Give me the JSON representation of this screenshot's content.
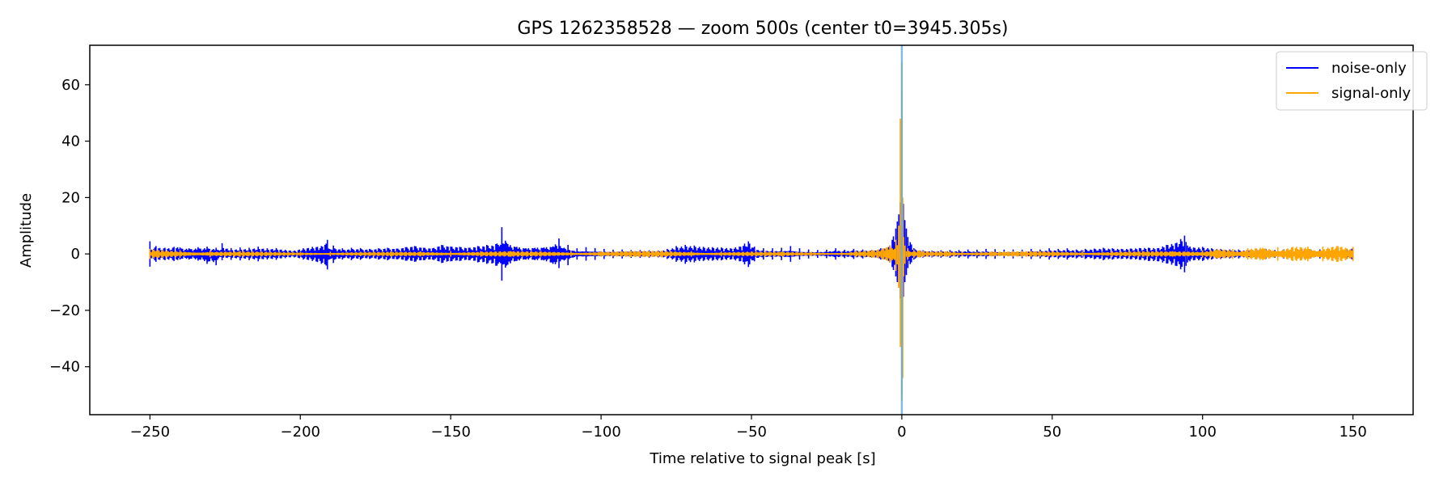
{
  "chart_data": {
    "type": "line",
    "title": "GPS 1262358528 — zoom 500s (center t0=3945.305s)",
    "xlabel": "Time relative to signal peak [s]",
    "ylabel": "Amplitude",
    "xlim": [
      -270,
      170
    ],
    "ylim": [
      -57,
      74
    ],
    "xticks": [
      -250,
      -200,
      -150,
      -100,
      -50,
      0,
      50,
      100,
      150
    ],
    "xtick_labels": [
      "−250",
      "−200",
      "−150",
      "−100",
      "−50",
      "0",
      "50",
      "100",
      "150"
    ],
    "yticks": [
      -40,
      -20,
      0,
      20,
      40,
      60
    ],
    "ytick_labels": [
      "−40",
      "−20",
      "0",
      "20",
      "40",
      "60"
    ],
    "grid": false,
    "legend_position": "top-right",
    "reference_line": {
      "x": 0,
      "color": "#6baed6"
    },
    "series": [
      {
        "name": "noise-only",
        "color": "#0000ff",
        "x": [
          -250,
          -248,
          -245,
          -242,
          -240,
          -237,
          -234,
          -231,
          -228,
          -226,
          -223,
          -220,
          -217,
          -214,
          -211,
          -208,
          -205,
          -202,
          -199,
          -196,
          -193,
          -191,
          -189,
          -186,
          -183,
          -180,
          -177,
          -174,
          -171,
          -168,
          -165,
          -162,
          -159,
          -156,
          -153,
          -150,
          -147,
          -144,
          -141,
          -138,
          -135,
          -133,
          -131,
          -128,
          -125,
          -122,
          -119,
          -116,
          -114,
          -111,
          -108,
          -105,
          -102,
          -99,
          -96,
          -93,
          -90,
          -87,
          -84,
          -81,
          -78,
          -75,
          -72,
          -69,
          -66,
          -63,
          -60,
          -57,
          -54,
          -51,
          -49,
          -46,
          -43,
          -40,
          -37,
          -34,
          -31,
          -28,
          -25,
          -22,
          -19,
          -16,
          -13,
          -10,
          -7,
          -4,
          -2,
          -1,
          0,
          1,
          2,
          4,
          7,
          10,
          13,
          16,
          19,
          22,
          25,
          28,
          31,
          34,
          37,
          40,
          43,
          46,
          49,
          52,
          55,
          58,
          61,
          64,
          67,
          70,
          73,
          76,
          79,
          82,
          85,
          88,
          91,
          94,
          95,
          97,
          100,
          103,
          106,
          109,
          112,
          115,
          118,
          121,
          124,
          127,
          130,
          133,
          136,
          139,
          142,
          145,
          148,
          150
        ],
        "upper": [
          4.5,
          2.8,
          2.2,
          2.5,
          2.3,
          2.0,
          2.4,
          2.6,
          2.2,
          3.8,
          2.1,
          2.3,
          2.2,
          2.6,
          2.0,
          2.1,
          1.5,
          1.2,
          2.0,
          2.5,
          2.8,
          5.0,
          3.0,
          2.0,
          2.2,
          2.1,
          1.8,
          2.0,
          2.2,
          1.9,
          2.4,
          2.8,
          2.2,
          2.0,
          3.2,
          2.6,
          2.5,
          2.2,
          2.8,
          3.2,
          3.5,
          9.5,
          3.5,
          2.5,
          2.0,
          2.2,
          2.3,
          2.7,
          5.5,
          3.2,
          2.0,
          2.4,
          2.1,
          1.8,
          1.5,
          1.6,
          1.4,
          1.4,
          1.3,
          1.2,
          1.8,
          2.8,
          3.2,
          3.0,
          2.5,
          2.4,
          2.3,
          2.0,
          2.6,
          4.5,
          2.6,
          2.0,
          2.0,
          2.2,
          2.8,
          2.0,
          1.6,
          1.4,
          1.5,
          2.0,
          1.5,
          1.8,
          1.6,
          1.4,
          2.0,
          3.0,
          9.0,
          14.0,
          58.0,
          12.0,
          6.0,
          2.0,
          1.3,
          1.2,
          1.3,
          1.4,
          1.4,
          1.6,
          1.5,
          1.8,
          1.7,
          1.5,
          1.6,
          1.5,
          1.8,
          1.6,
          2.0,
          1.8,
          2.0,
          1.6,
          1.8,
          1.9,
          2.2,
          2.0,
          1.8,
          1.9,
          2.1,
          2.2,
          2.0,
          3.2,
          3.8,
          6.5,
          3.0,
          2.3,
          2.5,
          2.0,
          1.8,
          1.6,
          1.6,
          1.5,
          1.6,
          1.8,
          1.4,
          1.6,
          1.5,
          1.7,
          1.5,
          1.6,
          1.8,
          1.8,
          1.7,
          2.0
        ],
        "lower": [
          -4.5,
          -2.8,
          -2.2,
          -2.5,
          -2.0,
          -2.0,
          -2.4,
          -3.5,
          -4.0,
          -2.2,
          -2.1,
          -2.3,
          -2.2,
          -2.6,
          -2.0,
          -2.1,
          -1.5,
          -1.2,
          -2.0,
          -2.5,
          -3.5,
          -5.5,
          -3.2,
          -2.0,
          -2.2,
          -2.1,
          -1.8,
          -2.0,
          -2.2,
          -1.9,
          -2.4,
          -2.8,
          -2.2,
          -2.0,
          -3.2,
          -2.6,
          -2.5,
          -2.2,
          -3.0,
          -3.5,
          -4.2,
          -9.5,
          -3.8,
          -2.5,
          -2.0,
          -2.2,
          -2.3,
          -3.5,
          -5.0,
          -4.0,
          -2.0,
          -2.4,
          -2.1,
          -1.8,
          -1.5,
          -1.6,
          -1.4,
          -1.4,
          -1.3,
          -1.2,
          -1.8,
          -2.8,
          -3.5,
          -3.0,
          -2.5,
          -2.4,
          -2.3,
          -2.0,
          -2.6,
          -4.6,
          -2.6,
          -2.0,
          -2.0,
          -2.2,
          -2.8,
          -2.0,
          -1.6,
          -1.4,
          -1.5,
          -2.0,
          -1.5,
          -1.8,
          -1.6,
          -1.4,
          -2.0,
          -3.0,
          -8.0,
          -12.0,
          -50.0,
          -10.0,
          -5.0,
          -2.0,
          -1.3,
          -1.2,
          -1.3,
          -1.4,
          -1.4,
          -1.6,
          -1.5,
          -1.8,
          -1.7,
          -1.5,
          -1.6,
          -1.5,
          -1.8,
          -1.6,
          -2.0,
          -1.8,
          -2.0,
          -1.6,
          -1.8,
          -1.9,
          -2.2,
          -2.0,
          -1.8,
          -1.9,
          -2.1,
          -2.5,
          -2.6,
          -3.4,
          -4.2,
          -6.5,
          -3.0,
          -2.3,
          -2.5,
          -2.0,
          -1.8,
          -1.6,
          -1.6,
          -1.5,
          -1.6,
          -1.8,
          -1.4,
          -1.6,
          -1.5,
          -1.7,
          -1.5,
          -1.6,
          -1.8,
          -1.8,
          -1.7,
          -2.0
        ]
      },
      {
        "name": "signal-only",
        "color": "#ffa500",
        "x": [
          -250,
          -240,
          -230,
          -220,
          -210,
          -200,
          -190,
          -180,
          -170,
          -160,
          -150,
          -140,
          -130,
          -120,
          -110,
          -100,
          -90,
          -80,
          -70,
          -60,
          -50,
          -40,
          -30,
          -20,
          -15,
          -10,
          -6,
          -4,
          -2,
          -1,
          -0.5,
          0,
          0.3,
          0.6,
          1,
          2,
          4,
          6,
          10,
          15,
          20,
          30,
          40,
          50,
          60,
          70,
          80,
          90,
          100,
          105,
          110,
          115,
          120,
          125,
          130,
          135,
          140,
          145,
          150
        ],
        "upper": [
          1.8,
          1.4,
          1.2,
          1.0,
          0.8,
          0.7,
          0.8,
          0.8,
          0.8,
          0.9,
          1.0,
          1.0,
          1.0,
          1.0,
          1.0,
          1.0,
          1.1,
          1.2,
          1.0,
          0.9,
          0.9,
          0.8,
          0.8,
          0.8,
          1.0,
          1.3,
          2.0,
          3.0,
          5.0,
          10.0,
          48.0,
          68.0,
          20.0,
          6.0,
          3.0,
          2.0,
          1.5,
          1.2,
          1.0,
          0.9,
          0.9,
          0.9,
          1.0,
          1.0,
          1.0,
          1.0,
          1.0,
          1.0,
          1.3,
          1.6,
          1.8,
          2.0,
          2.2,
          2.4,
          2.5,
          2.6,
          2.6,
          2.8,
          2.5
        ],
        "lower": [
          -1.8,
          -1.4,
          -1.2,
          -1.0,
          -0.8,
          -0.7,
          -0.8,
          -0.8,
          -0.8,
          -0.9,
          -1.0,
          -1.0,
          -1.0,
          -1.0,
          -1.0,
          -1.0,
          -1.1,
          -1.2,
          -1.0,
          -0.9,
          -0.9,
          -0.8,
          -0.8,
          -0.8,
          -1.0,
          -1.3,
          -2.0,
          -3.0,
          -6.0,
          -12.0,
          -33.0,
          -52.0,
          -44.0,
          -8.0,
          -3.5,
          -2.0,
          -1.5,
          -1.2,
          -1.0,
          -0.9,
          -0.9,
          -0.9,
          -1.0,
          -1.0,
          -1.0,
          -1.0,
          -1.0,
          -1.0,
          -1.3,
          -1.6,
          -1.8,
          -2.0,
          -2.2,
          -2.4,
          -2.5,
          -2.6,
          -2.6,
          -2.8,
          -2.5
        ]
      }
    ]
  }
}
